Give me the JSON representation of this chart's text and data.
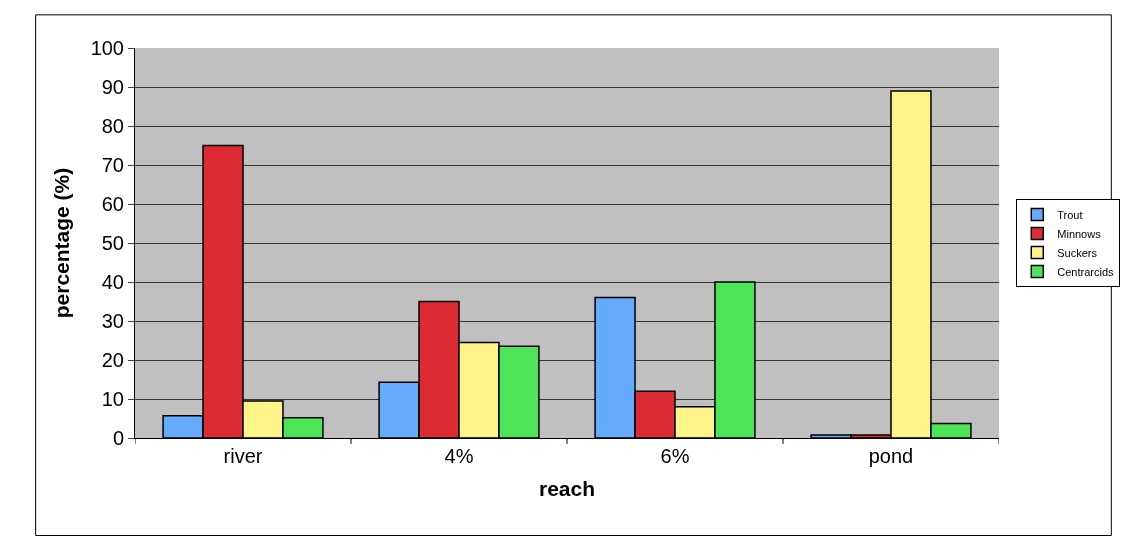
{
  "chart_data": {
    "type": "bar",
    "xlabel": "reach",
    "ylabel": "percentage (%)",
    "categories": [
      "river",
      "4%",
      "6%",
      "pond"
    ],
    "series": [
      {
        "name": "Trout",
        "color": "#66aaff",
        "values": [
          5.7,
          14.3,
          36,
          0.8
        ]
      },
      {
        "name": "Minnows",
        "color": "#dd2b33",
        "values": [
          75,
          35,
          12,
          0.8
        ]
      },
      {
        "name": "Suckers",
        "color": "#fff38a",
        "values": [
          9.5,
          24.5,
          8,
          89
        ]
      },
      {
        "name": "Centrarcids",
        "color": "#4ee458",
        "values": [
          5.2,
          23.5,
          40,
          3.7
        ]
      }
    ],
    "ylim": [
      0,
      100
    ],
    "yticks": [
      0,
      10,
      20,
      30,
      40,
      50,
      60,
      70,
      80,
      90,
      100
    ],
    "grid": "y",
    "legend": "right"
  }
}
